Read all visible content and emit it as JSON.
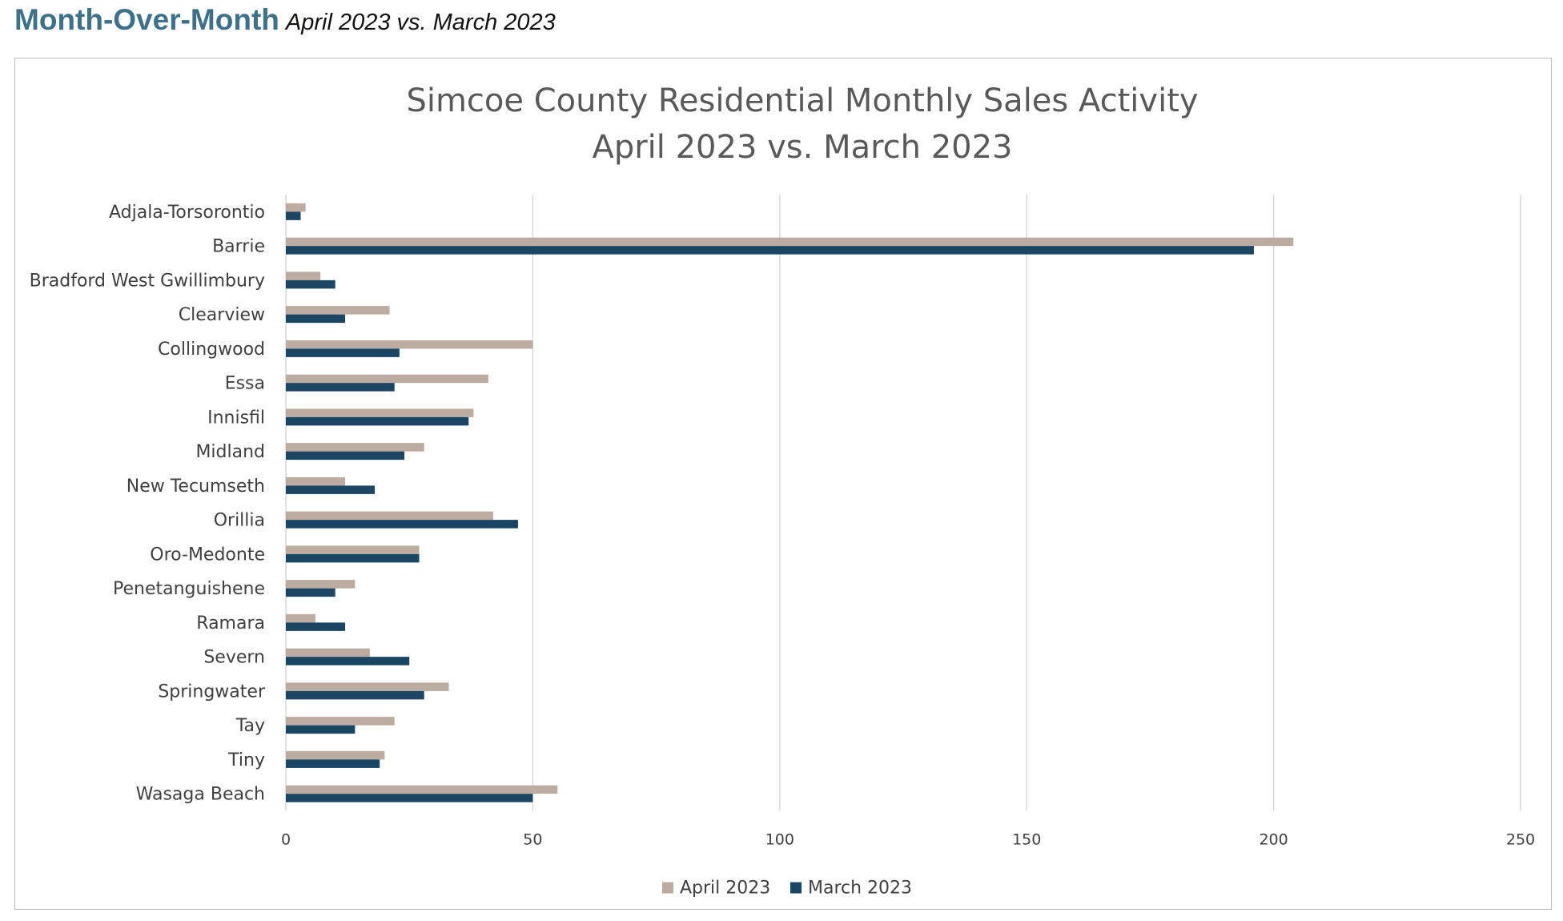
{
  "header": {
    "title": "Month-Over-Month",
    "subtitle": "April 2023 vs. March 2023"
  },
  "chart_data": {
    "type": "bar",
    "orientation": "horizontal",
    "title": "Simcoe County Residential Monthly Sales Activity",
    "subtitle": "April 2023 vs. March 2023",
    "xlabel": "",
    "ylabel": "",
    "xlim": [
      0,
      250
    ],
    "xticks": [
      0,
      50,
      100,
      150,
      200,
      250
    ],
    "grid": "vertical",
    "legend_position": "bottom",
    "categories": [
      "Adjala-Torsorontio",
      "Barrie",
      "Bradford West Gwillimbury",
      "Clearview",
      "Collingwood",
      "Essa",
      "Innisfil",
      "Midland",
      "New Tecumseth",
      "Orillia",
      "Oro-Medonte",
      "Penetanguishene",
      "Ramara",
      "Severn",
      "Springwater",
      "Tay",
      "Tiny",
      "Wasaga Beach"
    ],
    "series": [
      {
        "name": "April 2023",
        "color": "#bcaba0",
        "values": [
          4,
          204,
          7,
          21,
          50,
          41,
          38,
          28,
          12,
          42,
          27,
          14,
          6,
          17,
          33,
          22,
          20,
          55
        ]
      },
      {
        "name": "March 2023",
        "color": "#1b4663",
        "values": [
          3,
          196,
          10,
          12,
          23,
          22,
          37,
          24,
          18,
          47,
          27,
          10,
          12,
          25,
          28,
          14,
          19,
          50
        ]
      }
    ]
  }
}
